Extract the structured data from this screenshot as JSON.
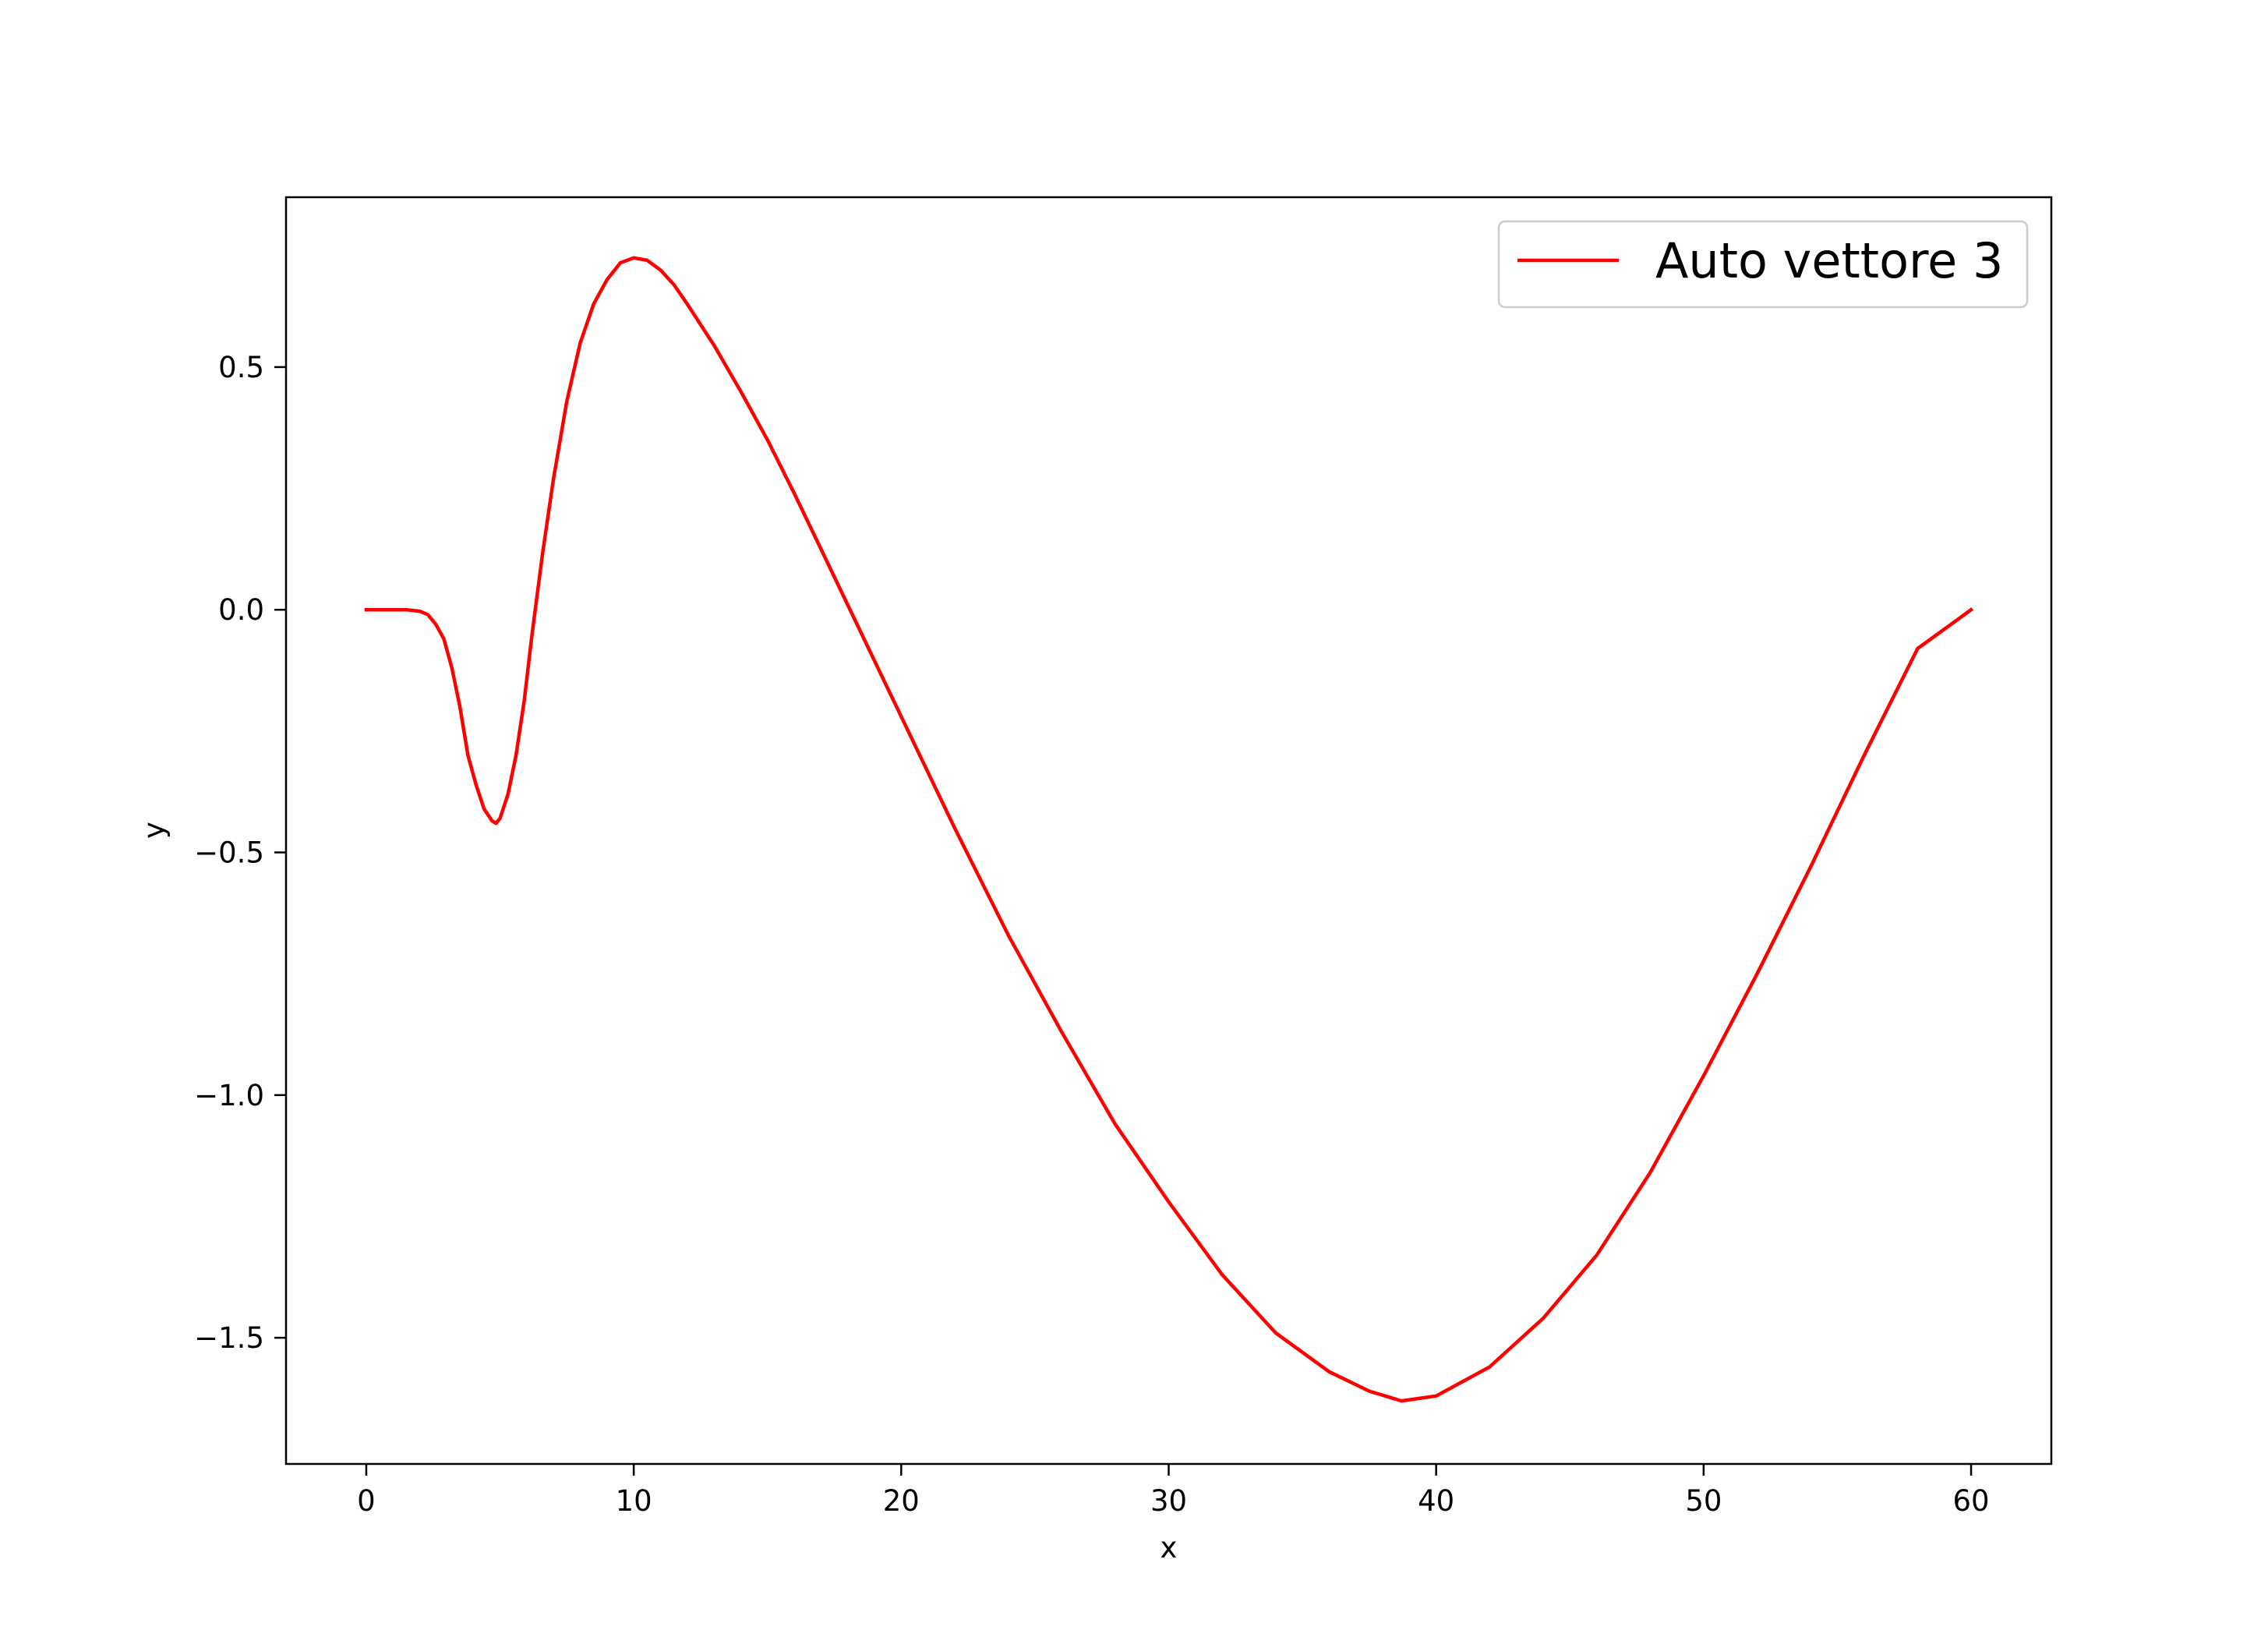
{
  "chart_data": {
    "type": "line",
    "xlabel": "x",
    "ylabel": "y",
    "xlim": [
      -3,
      63
    ],
    "ylim": [
      -1.76,
      0.85
    ],
    "x_ticks": [
      0,
      10,
      20,
      30,
      40,
      50,
      60
    ],
    "x_tick_labels": [
      "0",
      "10",
      "20",
      "30",
      "40",
      "50",
      "60"
    ],
    "y_ticks": [
      0.5,
      0.0,
      -0.5,
      -1.0,
      -1.5
    ],
    "y_tick_labels": [
      "0.5",
      "0.0",
      "−0.5",
      "−1.0",
      "−1.5"
    ],
    "grid": false,
    "legend_position": "top-right",
    "series": [
      {
        "name": "Auto vettore 3",
        "color": "#ff0000",
        "x": [
          0,
          0.3,
          0.6,
          1,
          1.5,
          2,
          2.3,
          2.6,
          2.9,
          3.2,
          3.5,
          3.8,
          4.1,
          4.4,
          4.7,
          4.85,
          5.0,
          5.3,
          5.6,
          5.9,
          6.2,
          6.6,
          7.0,
          7.5,
          8.0,
          8.5,
          9.0,
          9.5,
          10.0,
          10.5,
          11.0,
          11.5,
          12.0,
          13,
          14,
          15,
          16,
          17,
          18,
          20,
          22,
          24,
          26,
          28,
          30,
          32,
          34,
          36,
          37.5,
          38.7,
          40,
          42,
          44,
          46,
          48,
          50,
          52,
          54,
          56,
          58,
          59.5,
          60
        ],
        "y": [
          0.0,
          0.0,
          0.0,
          0.0,
          0.0,
          -0.003,
          -0.01,
          -0.03,
          -0.06,
          -0.12,
          -0.2,
          -0.3,
          -0.36,
          -0.41,
          -0.435,
          -0.44,
          -0.43,
          -0.38,
          -0.3,
          -0.19,
          -0.05,
          0.12,
          0.27,
          0.43,
          0.55,
          0.63,
          0.68,
          0.715,
          0.725,
          0.72,
          0.7,
          0.67,
          0.63,
          0.545,
          0.45,
          0.35,
          0.24,
          0.125,
          0.01,
          -0.22,
          -0.45,
          -0.67,
          -0.87,
          -1.06,
          -1.22,
          -1.37,
          -1.49,
          -1.57,
          -1.61,
          -1.63,
          -1.62,
          -1.56,
          -1.46,
          -1.33,
          -1.16,
          -0.96,
          -0.75,
          -0.53,
          -0.3,
          -0.08,
          -0.02,
          0.0
        ]
      }
    ]
  }
}
